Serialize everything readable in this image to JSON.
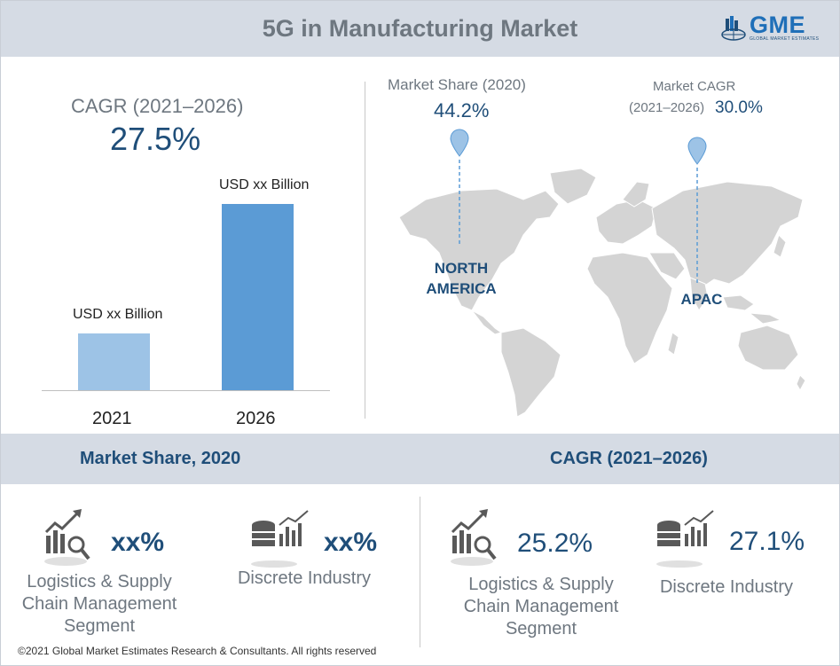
{
  "header": {
    "title": "5G in Manufacturing Market",
    "logo_text": "GME",
    "logo_subtext": "GLOBAL MARKET ESTIMATES"
  },
  "growth": {
    "cagr_label": "CAGR (2021–2026)",
    "cagr_value": "27.5%"
  },
  "chart_data": {
    "type": "bar",
    "categories": [
      "2021",
      "2026"
    ],
    "data_labels": [
      "USD xx Billion",
      "USD xx Billion"
    ],
    "values": [
      1,
      3.3
    ],
    "colors": [
      "#9dc3e6",
      "#5b9bd5"
    ]
  },
  "regions": {
    "market_share_label": "Market Share (2020)",
    "market_share_value": "44.2%",
    "market_share_region": [
      "NORTH",
      "AMERICA"
    ],
    "market_cagr_label_line1": "Market CAGR",
    "market_cagr_label_line2": "(2021–2026)",
    "market_cagr_value": "30.0%",
    "market_cagr_region": "APAC"
  },
  "band": {
    "left_title": "Market Share, 2020",
    "right_title": "CAGR (2021–2026)"
  },
  "segments": {
    "share": [
      {
        "value": "xx%",
        "label_lines": [
          "Logistics & Supply",
          "Chain Management",
          "Segment"
        ],
        "icon": "chart-magnifier-icon"
      },
      {
        "value": "xx%",
        "label_lines": [
          "Discrete Industry"
        ],
        "icon": "database-chart-icon"
      }
    ],
    "cagr": [
      {
        "value": "25.2%",
        "label_lines": [
          "Logistics & Supply",
          "Chain Management",
          "Segment"
        ],
        "icon": "chart-magnifier-icon"
      },
      {
        "value": "27.1%",
        "label_lines": [
          "Discrete Industry"
        ],
        "icon": "database-chart-icon"
      }
    ]
  },
  "footer": {
    "copyright": "©2021 Global Market Estimates Research & Consultants. All rights reserved"
  },
  "colors": {
    "accent_dark": "#1f4e79",
    "header_bg": "#d5dbe4",
    "muted_text": "#6e7780",
    "map_fill": "#d4d4d4",
    "pin": "#9dc3e6"
  }
}
